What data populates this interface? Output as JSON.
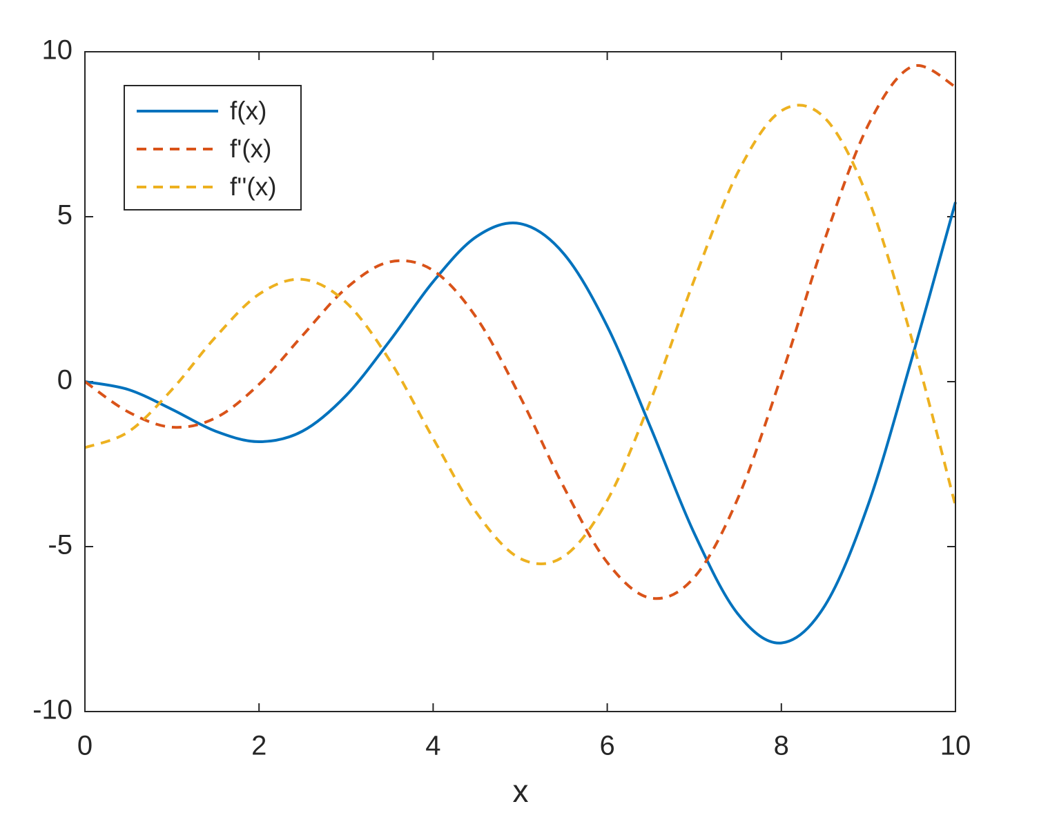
{
  "chart_data": {
    "type": "line",
    "x_label": "x",
    "x": [
      0,
      0.5,
      1,
      1.5,
      2,
      2.5,
      3,
      3.5,
      4,
      4.5,
      5,
      5.5,
      6,
      6.5,
      7,
      7.5,
      8,
      8.5,
      9,
      9.5,
      10
    ],
    "series": [
      {
        "name": "f(x)",
        "color": "#0072BD",
        "line_style": "solid",
        "values": [
          0,
          -0.24,
          -0.84,
          -1.5,
          -1.82,
          -1.5,
          -0.42,
          1.23,
          3.03,
          4.4,
          4.79,
          3.88,
          1.68,
          -1.4,
          -4.6,
          -7.04,
          -7.92,
          -6.79,
          -3.71,
          0.71,
          5.44
        ]
      },
      {
        "name": "f'(x)",
        "color": "#D95319",
        "line_style": "dashed",
        "values": [
          0,
          -0.92,
          -1.38,
          -1.1,
          -0.08,
          1.4,
          2.83,
          3.63,
          3.37,
          1.93,
          -0.46,
          -3.19,
          -5.48,
          -6.56,
          -5.93,
          -3.54,
          0.17,
          4.32,
          7.79,
          9.55,
          8.94
        ]
      },
      {
        "name": "f''(x)",
        "color": "#EDB120",
        "line_style": "dashed",
        "values": [
          -2,
          -1.52,
          -0.24,
          1.35,
          2.65,
          3.1,
          2.4,
          0.65,
          -1.72,
          -3.98,
          -5.36,
          -5.3,
          -3.6,
          -0.56,
          3.09,
          6.34,
          8.21,
          7.99,
          5.53,
          1.28,
          -3.76
        ]
      }
    ],
    "xlim": [
      0,
      10
    ],
    "xticks": [
      0,
      2,
      4,
      6,
      8,
      10
    ],
    "ylim": [
      -10,
      10
    ],
    "yticks": [
      -10,
      -5,
      0,
      5,
      10
    ],
    "grid": false,
    "legend_position": "upper left"
  }
}
